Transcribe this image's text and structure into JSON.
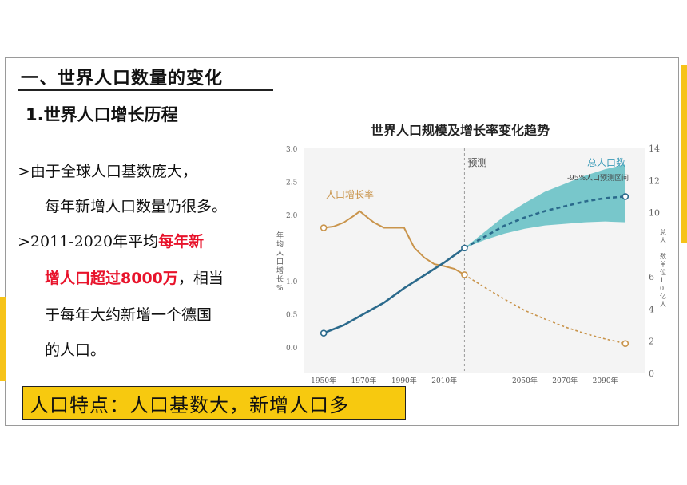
{
  "slide": {
    "section_title": "一、世界人口数量的变化",
    "subtitle": "1.世界人口增长历程",
    "bullets": [
      {
        "line1": ">由于全球人口基数庞大，",
        "line2": "每年新增人口数量仍很多。"
      },
      {
        "line1_a": ">2011-2020年平均",
        "line1_red": "每年新",
        "line2_red": "增人口超过8000万",
        "line2_b": "，相当",
        "line3": "于每年大约新增一个德国",
        "line4": "的人口。"
      }
    ],
    "callout": "人口特点：人口基数大，新增人口多"
  },
  "colors": {
    "accent": "#f6c319",
    "growth_rate": "#c9944b",
    "population": "#2b6a8c",
    "band": "#4fb8bd",
    "highlight": "#e8132b"
  },
  "chart_data": {
    "type": "line",
    "title": "世界人口规模及增长率变化趋势",
    "forecast_label": "预测",
    "forecast_start": 2020,
    "band_label": "-95%人口预测区间",
    "x_ticks": [
      "1950年",
      "1970年",
      "1990年",
      "2010年",
      "2050年",
      "2070年",
      "2090年"
    ],
    "x_tick_values": [
      1950,
      1970,
      1990,
      2010,
      2050,
      2070,
      2090
    ],
    "xlim": [
      1940,
      2110
    ],
    "left_axis": {
      "label": "年均人口增长%",
      "ticks": [
        "3.0",
        "2.5",
        "2.0",
        "1.0",
        "0.5",
        "0.0"
      ],
      "tick_values": [
        3.0,
        2.5,
        2.0,
        1.0,
        0.5,
        0.0
      ],
      "ylim": [
        -0.4,
        3.0
      ]
    },
    "right_axis": {
      "label": "总人口数单位10亿人",
      "ticks": [
        "14",
        "12",
        "10",
        "6",
        "4",
        "2",
        "0"
      ],
      "tick_values": [
        14,
        12,
        10,
        6,
        4,
        2,
        0
      ],
      "ylim": [
        0,
        14
      ]
    },
    "series": [
      {
        "name": "人口增长率",
        "axis": "left",
        "x": [
          1950,
          1955,
          1960,
          1965,
          1968,
          1972,
          1975,
          1980,
          1985,
          1990,
          1995,
          2000,
          2005,
          2010,
          2015,
          2020
        ],
        "y": [
          1.8,
          1.82,
          1.88,
          1.98,
          2.05,
          1.95,
          1.88,
          1.8,
          1.8,
          1.8,
          1.5,
          1.35,
          1.25,
          1.22,
          1.18,
          1.09
        ],
        "forecast_x": [
          2020,
          2030,
          2040,
          2050,
          2060,
          2070,
          2080,
          2090,
          2100
        ],
        "forecast_y": [
          1.09,
          0.9,
          0.72,
          0.55,
          0.42,
          0.3,
          0.2,
          0.12,
          0.05
        ]
      },
      {
        "name": "总人口数",
        "axis": "right",
        "x": [
          1950,
          1960,
          1970,
          1980,
          1990,
          2000,
          2010,
          2020
        ],
        "y": [
          2.5,
          3.0,
          3.7,
          4.4,
          5.3,
          6.1,
          6.9,
          7.8
        ],
        "forecast_x": [
          2020,
          2030,
          2040,
          2050,
          2060,
          2070,
          2080,
          2090,
          2100
        ],
        "forecast_y": [
          7.8,
          8.5,
          9.2,
          9.7,
          10.1,
          10.4,
          10.7,
          10.9,
          11.0
        ],
        "band_low": [
          7.8,
          8.3,
          8.7,
          9.0,
          9.2,
          9.3,
          9.4,
          9.45,
          9.4
        ],
        "band_high": [
          7.8,
          8.8,
          9.8,
          10.6,
          11.3,
          11.8,
          12.3,
          12.7,
          13.0
        ]
      }
    ]
  }
}
